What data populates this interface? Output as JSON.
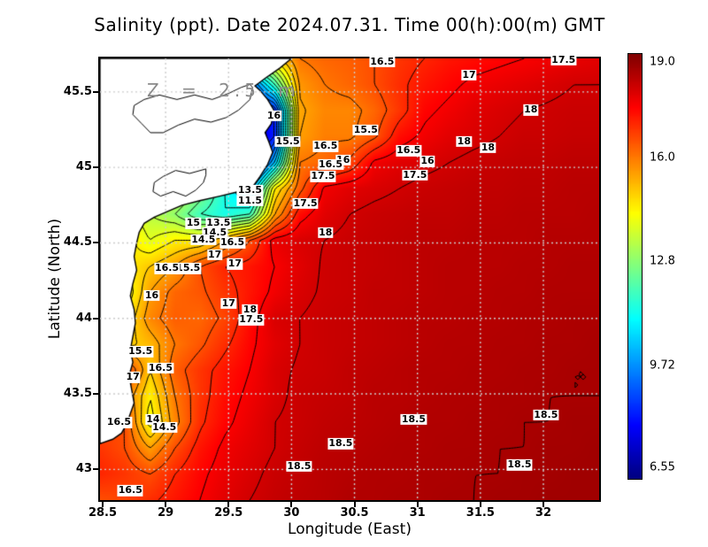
{
  "title": "Salinity (ppt). Date 2024.07.31. Time 00(h):00(m) GMT",
  "annotation": "Z = 2.5 m",
  "axes": {
    "x_label": "Longitude (East)",
    "y_label": "Latitude (North)",
    "x_ticks": [
      "28.5",
      "29",
      "29.5",
      "30",
      "30.5",
      "31",
      "31.5",
      "32"
    ],
    "x_tick_values": [
      28.5,
      29,
      29.5,
      30,
      30.5,
      31,
      31.5,
      32
    ],
    "y_ticks": [
      "43",
      "43.5",
      "44",
      "44.5",
      "45",
      "45.5"
    ],
    "y_tick_values": [
      43,
      43.5,
      44,
      44.5,
      45,
      45.5
    ]
  },
  "colorbar": {
    "min": 6.55,
    "max": 19.0,
    "tick_labels": [
      "19.0",
      "16.0",
      "12.8",
      "9.72",
      "6.55"
    ],
    "tick_values": [
      19.0,
      16.0,
      12.8,
      9.72,
      6.55
    ]
  },
  "chart_data": {
    "type": "heatmap",
    "field_name": "salinity_ppt",
    "colormap": "jet",
    "lon_range": [
      28.479,
      32.443
    ],
    "lat_range": [
      42.797,
      45.722
    ],
    "grid_shape": [
      18,
      21
    ],
    "grid_order": "rows north to south, columns west to east, evenly spaced over lon_range/lat_range",
    "grid": [
      [
        15,
        15,
        15,
        15,
        15,
        14.5,
        14,
        14.8,
        16,
        16.2,
        16.3,
        16.5,
        16.8,
        17,
        17.2,
        17.3,
        17.4,
        17.5,
        17.6,
        17.7,
        17.8
      ],
      [
        15,
        15,
        15,
        15,
        14.5,
        13,
        9,
        12,
        15.6,
        16,
        16.2,
        16.5,
        16.9,
        17.2,
        17.4,
        17.6,
        17.7,
        17.8,
        17.9,
        18,
        18
      ],
      [
        15,
        15,
        15,
        15,
        14.5,
        12,
        7.5,
        8.5,
        15.4,
        15.8,
        15.8,
        16.2,
        16.8,
        17.4,
        17.6,
        17.8,
        17.9,
        18,
        18.05,
        18.1,
        18.1
      ],
      [
        15,
        15,
        15,
        15,
        14,
        11.5,
        7,
        8.5,
        15.5,
        15.9,
        15.9,
        16.4,
        17.3,
        17.6,
        17.8,
        17.9,
        18,
        18.1,
        18.1,
        18.15,
        18.15
      ],
      [
        15,
        15,
        15,
        14.5,
        13.5,
        11,
        7,
        10.5,
        16,
        16.2,
        16.6,
        17.6,
        17.8,
        17.9,
        18,
        18.1,
        18.15,
        18.2,
        18.2,
        18.25,
        18.25
      ],
      [
        15,
        15,
        15,
        14,
        13,
        11.5,
        10,
        14.5,
        16.3,
        17.6,
        17.8,
        17.9,
        18,
        18.1,
        18.15,
        18.2,
        18.2,
        18.25,
        18.25,
        18.3,
        18.3
      ],
      [
        15,
        14.5,
        13.5,
        13,
        12,
        11.5,
        12,
        15.5,
        17.3,
        17.8,
        18,
        18.1,
        18.15,
        18.2,
        18.2,
        18.25,
        18.25,
        18.3,
        18.3,
        18.3,
        18.35
      ],
      [
        15,
        14.8,
        14,
        14.5,
        14.5,
        15.5,
        16.5,
        17.7,
        17.9,
        18,
        18.1,
        18.15,
        18.2,
        18.25,
        18.25,
        18.3,
        18.3,
        18.3,
        18.35,
        18.35,
        18.35
      ],
      [
        15,
        14.5,
        15,
        15.5,
        16.5,
        17,
        17.2,
        17.5,
        17.8,
        18.05,
        18.1,
        18.15,
        18.2,
        18.25,
        18.3,
        18.3,
        18.3,
        18.35,
        18.35,
        18.4,
        18.4
      ],
      [
        15,
        14,
        15.5,
        16.2,
        16.4,
        16.8,
        17.2,
        17.6,
        17.9,
        18.05,
        18.1,
        18.2,
        18.2,
        18.25,
        18.3,
        18.3,
        18.35,
        18.35,
        18.4,
        18.4,
        18.4
      ],
      [
        15,
        14.5,
        15.8,
        16.3,
        16.2,
        16.6,
        17.3,
        17.9,
        18,
        18.1,
        18.15,
        18.2,
        18.25,
        18.3,
        18.3,
        18.35,
        18.35,
        18.4,
        18.4,
        18.45,
        18.45
      ],
      [
        15,
        14.8,
        15.2,
        16,
        16.4,
        16.9,
        17.4,
        17.8,
        18,
        18.1,
        18.15,
        18.2,
        18.25,
        18.3,
        18.35,
        18.35,
        18.4,
        18.4,
        18.45,
        18.45,
        18.5
      ],
      [
        16.5,
        16.8,
        15,
        16.3,
        16.8,
        17.2,
        17.5,
        17.9,
        18.05,
        18.1,
        18.2,
        18.25,
        18.3,
        18.35,
        18.35,
        18.4,
        18.4,
        18.45,
        18.45,
        18.5,
        18.5
      ],
      [
        16.5,
        16,
        14.5,
        16,
        16.8,
        17.3,
        17.6,
        17.9,
        18.1,
        18.15,
        18.2,
        18.3,
        18.3,
        18.35,
        18.4,
        18.4,
        18.45,
        18.45,
        18.5,
        18.5,
        18.5
      ],
      [
        16.5,
        16.5,
        14.2,
        15.8,
        16.9,
        17.4,
        17.7,
        18,
        18.1,
        18.2,
        18.25,
        18.3,
        18.35,
        18.4,
        18.4,
        18.45,
        18.45,
        18.5,
        18.5,
        18.55,
        18.55
      ],
      [
        16.8,
        16.5,
        15.5,
        16.5,
        17.2,
        17.6,
        17.8,
        18,
        18.15,
        18.25,
        18.3,
        18.35,
        18.4,
        18.4,
        18.45,
        18.45,
        18.5,
        18.5,
        18.55,
        18.55,
        18.6
      ],
      [
        17,
        16.8,
        16.5,
        17,
        17.4,
        17.7,
        17.9,
        18.1,
        18.2,
        18.3,
        18.35,
        18.4,
        18.4,
        18.45,
        18.45,
        18.5,
        18.5,
        18.55,
        18.55,
        18.6,
        18.6
      ],
      [
        16.5,
        16.6,
        16.9,
        17.2,
        17.5,
        17.8,
        18,
        18.15,
        18.25,
        18.3,
        18.4,
        18.4,
        18.45,
        18.45,
        18.5,
        18.5,
        18.55,
        18.55,
        18.6,
        18.6,
        18.6
      ]
    ],
    "contour_levels": [
      7,
      7.5,
      8,
      8.5,
      9,
      9.5,
      10,
      10.5,
      11,
      11.5,
      12,
      12.5,
      13,
      13.5,
      14,
      14.5,
      15,
      15.5,
      16,
      16.5,
      17,
      17.5,
      18,
      18.5
    ],
    "contour_labels": [
      {
        "lon": 30.72,
        "lat": 45.7,
        "text": "16.5"
      },
      {
        "lon": 31.41,
        "lat": 45.61,
        "text": "17"
      },
      {
        "lon": 32.16,
        "lat": 45.71,
        "text": "17.5"
      },
      {
        "lon": 31.9,
        "lat": 45.38,
        "text": "18"
      },
      {
        "lon": 29.86,
        "lat": 45.34,
        "text": "16"
      },
      {
        "lon": 29.97,
        "lat": 45.17,
        "text": "15.5"
      },
      {
        "lon": 30.59,
        "lat": 45.25,
        "text": "15.5"
      },
      {
        "lon": 30.27,
        "lat": 45.14,
        "text": "16.5"
      },
      {
        "lon": 30.41,
        "lat": 45.05,
        "text": "16"
      },
      {
        "lon": 30.31,
        "lat": 45.02,
        "text": "16.5"
      },
      {
        "lon": 30.25,
        "lat": 44.94,
        "text": "17.5"
      },
      {
        "lon": 30.11,
        "lat": 44.76,
        "text": "17.5"
      },
      {
        "lon": 30.27,
        "lat": 44.57,
        "text": "18"
      },
      {
        "lon": 31.37,
        "lat": 45.17,
        "text": "18"
      },
      {
        "lon": 31.56,
        "lat": 45.13,
        "text": "18"
      },
      {
        "lon": 30.93,
        "lat": 45.11,
        "text": "16.5"
      },
      {
        "lon": 31.08,
        "lat": 45.04,
        "text": "16"
      },
      {
        "lon": 30.98,
        "lat": 44.95,
        "text": "17.5"
      },
      {
        "lon": 29.67,
        "lat": 44.85,
        "text": "13.5"
      },
      {
        "lon": 29.67,
        "lat": 44.78,
        "text": "11.5"
      },
      {
        "lon": 29.22,
        "lat": 44.63,
        "text": "15"
      },
      {
        "lon": 29.42,
        "lat": 44.63,
        "text": "13.5"
      },
      {
        "lon": 29.39,
        "lat": 44.57,
        "text": "14.5"
      },
      {
        "lon": 29.3,
        "lat": 44.52,
        "text": "14.5"
      },
      {
        "lon": 29.53,
        "lat": 44.5,
        "text": "16.5"
      },
      {
        "lon": 29.39,
        "lat": 44.42,
        "text": "17"
      },
      {
        "lon": 29.55,
        "lat": 44.36,
        "text": "17"
      },
      {
        "lon": 29.18,
        "lat": 44.33,
        "text": "15.5"
      },
      {
        "lon": 29.01,
        "lat": 44.33,
        "text": "16.5"
      },
      {
        "lon": 28.89,
        "lat": 44.15,
        "text": "16"
      },
      {
        "lon": 29.5,
        "lat": 44.1,
        "text": "17"
      },
      {
        "lon": 29.67,
        "lat": 44.06,
        "text": "18"
      },
      {
        "lon": 29.68,
        "lat": 43.99,
        "text": "17.5"
      },
      {
        "lon": 28.8,
        "lat": 43.78,
        "text": "15.5"
      },
      {
        "lon": 28.96,
        "lat": 43.67,
        "text": "16.5"
      },
      {
        "lon": 28.74,
        "lat": 43.61,
        "text": "17"
      },
      {
        "lon": 28.9,
        "lat": 43.33,
        "text": "14"
      },
      {
        "lon": 28.99,
        "lat": 43.28,
        "text": "14.5"
      },
      {
        "lon": 28.63,
        "lat": 43.31,
        "text": "16.5"
      },
      {
        "lon": 28.72,
        "lat": 42.86,
        "text": "16.5"
      },
      {
        "lon": 30.97,
        "lat": 43.33,
        "text": "18.5"
      },
      {
        "lon": 30.39,
        "lat": 43.17,
        "text": "18.5"
      },
      {
        "lon": 30.06,
        "lat": 43.02,
        "text": "18.5"
      },
      {
        "lon": 32.02,
        "lat": 43.36,
        "text": "18.5"
      },
      {
        "lon": 31.81,
        "lat": 43.03,
        "text": "18.5"
      }
    ],
    "coastline": [
      [
        30.0,
        45.722
      ],
      [
        29.91,
        45.66
      ],
      [
        29.79,
        45.59
      ],
      [
        29.71,
        45.54
      ],
      [
        29.75,
        45.51
      ],
      [
        29.81,
        45.45
      ],
      [
        29.86,
        45.38
      ],
      [
        29.84,
        45.29
      ],
      [
        29.79,
        45.23
      ],
      [
        29.82,
        45.17
      ],
      [
        29.85,
        45.1
      ],
      [
        29.81,
        45.02
      ],
      [
        29.75,
        44.94
      ],
      [
        29.69,
        44.87
      ],
      [
        29.58,
        44.84
      ],
      [
        29.43,
        44.81
      ],
      [
        29.27,
        44.78
      ],
      [
        29.13,
        44.75
      ],
      [
        29.02,
        44.71
      ],
      [
        28.91,
        44.67
      ],
      [
        28.83,
        44.63
      ],
      [
        28.79,
        44.57
      ],
      [
        28.77,
        44.5
      ],
      [
        28.75,
        44.41
      ],
      [
        28.77,
        44.32
      ],
      [
        28.74,
        44.23
      ],
      [
        28.72,
        44.15
      ],
      [
        28.75,
        44.06
      ],
      [
        28.76,
        43.97
      ],
      [
        28.74,
        43.88
      ],
      [
        28.72,
        43.79
      ],
      [
        28.74,
        43.71
      ],
      [
        28.71,
        43.62
      ],
      [
        28.73,
        43.53
      ],
      [
        28.75,
        43.44
      ],
      [
        28.72,
        43.37
      ],
      [
        28.69,
        43.3
      ],
      [
        28.65,
        43.24
      ],
      [
        28.58,
        43.2
      ],
      [
        28.479,
        43.17
      ],
      [
        28.479,
        45.722
      ]
    ],
    "lagoons": [
      [
        [
          28.81,
          45.29
        ],
        [
          28.74,
          45.35
        ],
        [
          28.75,
          45.41
        ],
        [
          28.83,
          45.45
        ],
        [
          28.95,
          45.48
        ],
        [
          29.09,
          45.45
        ],
        [
          29.23,
          45.48
        ],
        [
          29.37,
          45.45
        ],
        [
          29.5,
          45.49
        ],
        [
          29.6,
          45.53
        ],
        [
          29.67,
          45.55
        ],
        [
          29.69,
          45.53
        ],
        [
          29.67,
          45.45
        ],
        [
          29.58,
          45.38
        ],
        [
          29.48,
          45.33
        ],
        [
          29.36,
          45.3
        ],
        [
          29.23,
          45.32
        ],
        [
          29.1,
          45.28
        ],
        [
          28.98,
          45.23
        ],
        [
          28.88,
          45.23
        ]
      ],
      [
        [
          29.32,
          44.99
        ],
        [
          29.19,
          44.96
        ],
        [
          29.08,
          44.98
        ],
        [
          28.98,
          44.94
        ],
        [
          28.91,
          44.9
        ],
        [
          28.9,
          44.84
        ],
        [
          28.96,
          44.81
        ],
        [
          29.06,
          44.84
        ],
        [
          29.16,
          44.81
        ],
        [
          29.24,
          44.85
        ],
        [
          29.3,
          44.9
        ],
        [
          29.32,
          44.95
        ]
      ]
    ],
    "grid_lines": {
      "lon": [
        29,
        29.5,
        30,
        30.5,
        31,
        31.5,
        32
      ],
      "lat": [
        43,
        43.5,
        44,
        44.5,
        45,
        45.5
      ]
    }
  }
}
